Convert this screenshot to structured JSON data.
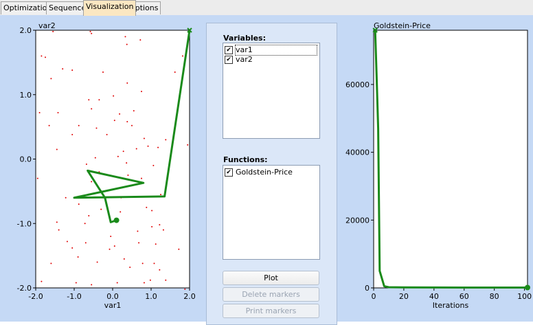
{
  "tabs": [
    {
      "label": "Optimization",
      "active": false
    },
    {
      "label": "Sequence",
      "active": false
    },
    {
      "label": "Visualization",
      "active": true
    },
    {
      "label": "Options",
      "active": false
    }
  ],
  "colors": {
    "panel_bg": "#c5d9f5",
    "active_tab": "#fbe7c2",
    "path": "#1a8a1a",
    "points": "#e00000"
  },
  "variables": {
    "label": "Variables:",
    "items": [
      {
        "label": "var1",
        "checked": true
      },
      {
        "label": "var2",
        "checked": true
      }
    ]
  },
  "functions": {
    "label": "Functions:",
    "items": [
      {
        "label": "Goldstein-Price",
        "checked": true
      }
    ]
  },
  "buttons": {
    "plot": "Plot",
    "delete_markers": "Delete markers",
    "print_markers": "Print markers"
  },
  "chart_data": [
    {
      "type": "scatter",
      "title": "",
      "xlabel": "var1",
      "ylabel": "var2",
      "xlim": [
        -2.0,
        2.0
      ],
      "ylim": [
        -2.0,
        2.0
      ],
      "x_ticks": [
        "-2.0",
        "-1.0",
        "0.0",
        "1.0",
        "2.0"
      ],
      "y_ticks": [
        "2.0",
        "1.0",
        "0.0",
        "-1.0",
        "-2.0"
      ],
      "sample_points": [
        [
          -1.55,
          1.98
        ],
        [
          -0.58,
          1.98
        ],
        [
          -0.55,
          1.95
        ],
        [
          0.33,
          1.9
        ],
        [
          0.37,
          1.78
        ],
        [
          0.72,
          1.85
        ],
        [
          -1.85,
          1.6
        ],
        [
          -1.75,
          1.58
        ],
        [
          -1.3,
          1.4
        ],
        [
          -1.05,
          1.38
        ],
        [
          -0.25,
          1.35
        ],
        [
          -1.6,
          1.25
        ],
        [
          0.38,
          1.18
        ],
        [
          0.75,
          1.05
        ],
        [
          1.62,
          1.35
        ],
        [
          1.82,
          1.6
        ],
        [
          -0.35,
          0.92
        ],
        [
          0.02,
          0.98
        ],
        [
          -0.62,
          0.92
        ],
        [
          0.18,
          0.7
        ],
        [
          -0.55,
          0.78
        ],
        [
          -1.42,
          0.72
        ],
        [
          -1.9,
          0.72
        ],
        [
          -1.65,
          0.52
        ],
        [
          -0.88,
          0.52
        ],
        [
          -0.42,
          0.48
        ],
        [
          0.5,
          0.52
        ],
        [
          0.38,
          0.58
        ],
        [
          0.55,
          0.75
        ],
        [
          0.05,
          0.6
        ],
        [
          -1.05,
          0.38
        ],
        [
          -0.15,
          0.38
        ],
        [
          0.92,
          0.2
        ],
        [
          0.82,
          0.32
        ],
        [
          0.62,
          0.16
        ],
        [
          0.28,
          0.12
        ],
        [
          1.18,
          0.18
        ],
        [
          1.38,
          0.3
        ],
        [
          1.95,
          0.22
        ],
        [
          -1.45,
          0.15
        ],
        [
          -0.45,
          0.02
        ],
        [
          0.14,
          0.04
        ],
        [
          0.36,
          -0.06
        ],
        [
          1.06,
          -0.1
        ],
        [
          -0.68,
          -0.08
        ],
        [
          -0.35,
          -0.2
        ],
        [
          0.4,
          -0.25
        ],
        [
          -1.95,
          -0.3
        ],
        [
          -0.55,
          -0.35
        ],
        [
          0.75,
          -0.3
        ],
        [
          1.25,
          -0.55
        ],
        [
          0.22,
          -0.6
        ],
        [
          -0.25,
          -0.55
        ],
        [
          -0.88,
          -0.7
        ],
        [
          -1.22,
          -0.6
        ],
        [
          0.88,
          -0.75
        ],
        [
          1.02,
          -0.8
        ],
        [
          -1.45,
          -0.98
        ],
        [
          -0.62,
          -0.88
        ],
        [
          -0.3,
          -0.78
        ],
        [
          0.2,
          -0.82
        ],
        [
          1.22,
          -1.02
        ],
        [
          1.32,
          -1.1
        ],
        [
          -1.4,
          -1.1
        ],
        [
          -0.72,
          -1.0
        ],
        [
          -0.05,
          -1.2
        ],
        [
          0.65,
          -1.12
        ],
        [
          1.02,
          -1.05
        ],
        [
          -1.18,
          -1.28
        ],
        [
          -1.05,
          -1.38
        ],
        [
          -0.7,
          -1.3
        ],
        [
          0.05,
          -1.35
        ],
        [
          0.68,
          -1.3
        ],
        [
          1.12,
          -1.32
        ],
        [
          1.72,
          -1.4
        ],
        [
          -0.08,
          -1.4
        ],
        [
          -0.9,
          -1.52
        ],
        [
          -0.4,
          -1.6
        ],
        [
          0.3,
          -1.55
        ],
        [
          0.78,
          -1.62
        ],
        [
          1.08,
          -1.62
        ],
        [
          -1.6,
          -1.62
        ],
        [
          0.45,
          -1.68
        ],
        [
          1.22,
          -1.72
        ],
        [
          0.98,
          -1.88
        ],
        [
          -0.95,
          -1.92
        ],
        [
          -0.55,
          -1.95
        ],
        [
          0.12,
          -1.92
        ],
        [
          0.82,
          -1.92
        ],
        [
          1.38,
          -1.88
        ],
        [
          1.88,
          -2.02
        ],
        [
          -1.85,
          -1.9
        ]
      ],
      "path": [
        [
          2.0,
          2.0
        ],
        [
          1.35,
          -0.58
        ],
        [
          -1.0,
          -0.6
        ],
        [
          0.8,
          -0.37
        ],
        [
          -0.65,
          -0.18
        ],
        [
          -0.2,
          -0.6
        ],
        [
          -0.05,
          -0.98
        ],
        [
          0.1,
          -0.95
        ]
      ],
      "path_start_marker": "x",
      "path_end_marker": "circle"
    },
    {
      "type": "line",
      "title": "Goldstein-Price",
      "xlabel": "Iterations",
      "ylabel": "",
      "xlim": [
        0,
        102
      ],
      "ylim": [
        0,
        76000
      ],
      "x_ticks": [
        "0",
        "20",
        "40",
        "60",
        "80",
        "100"
      ],
      "y_ticks": [
        "60000",
        "40000",
        "20000",
        "0"
      ],
      "x": [
        1,
        2,
        3,
        4,
        5,
        7,
        10,
        20,
        40,
        60,
        80,
        100,
        102
      ],
      "y": [
        76000,
        62000,
        47000,
        5000,
        3500,
        500,
        200,
        150,
        120,
        100,
        100,
        100,
        100
      ]
    }
  ]
}
